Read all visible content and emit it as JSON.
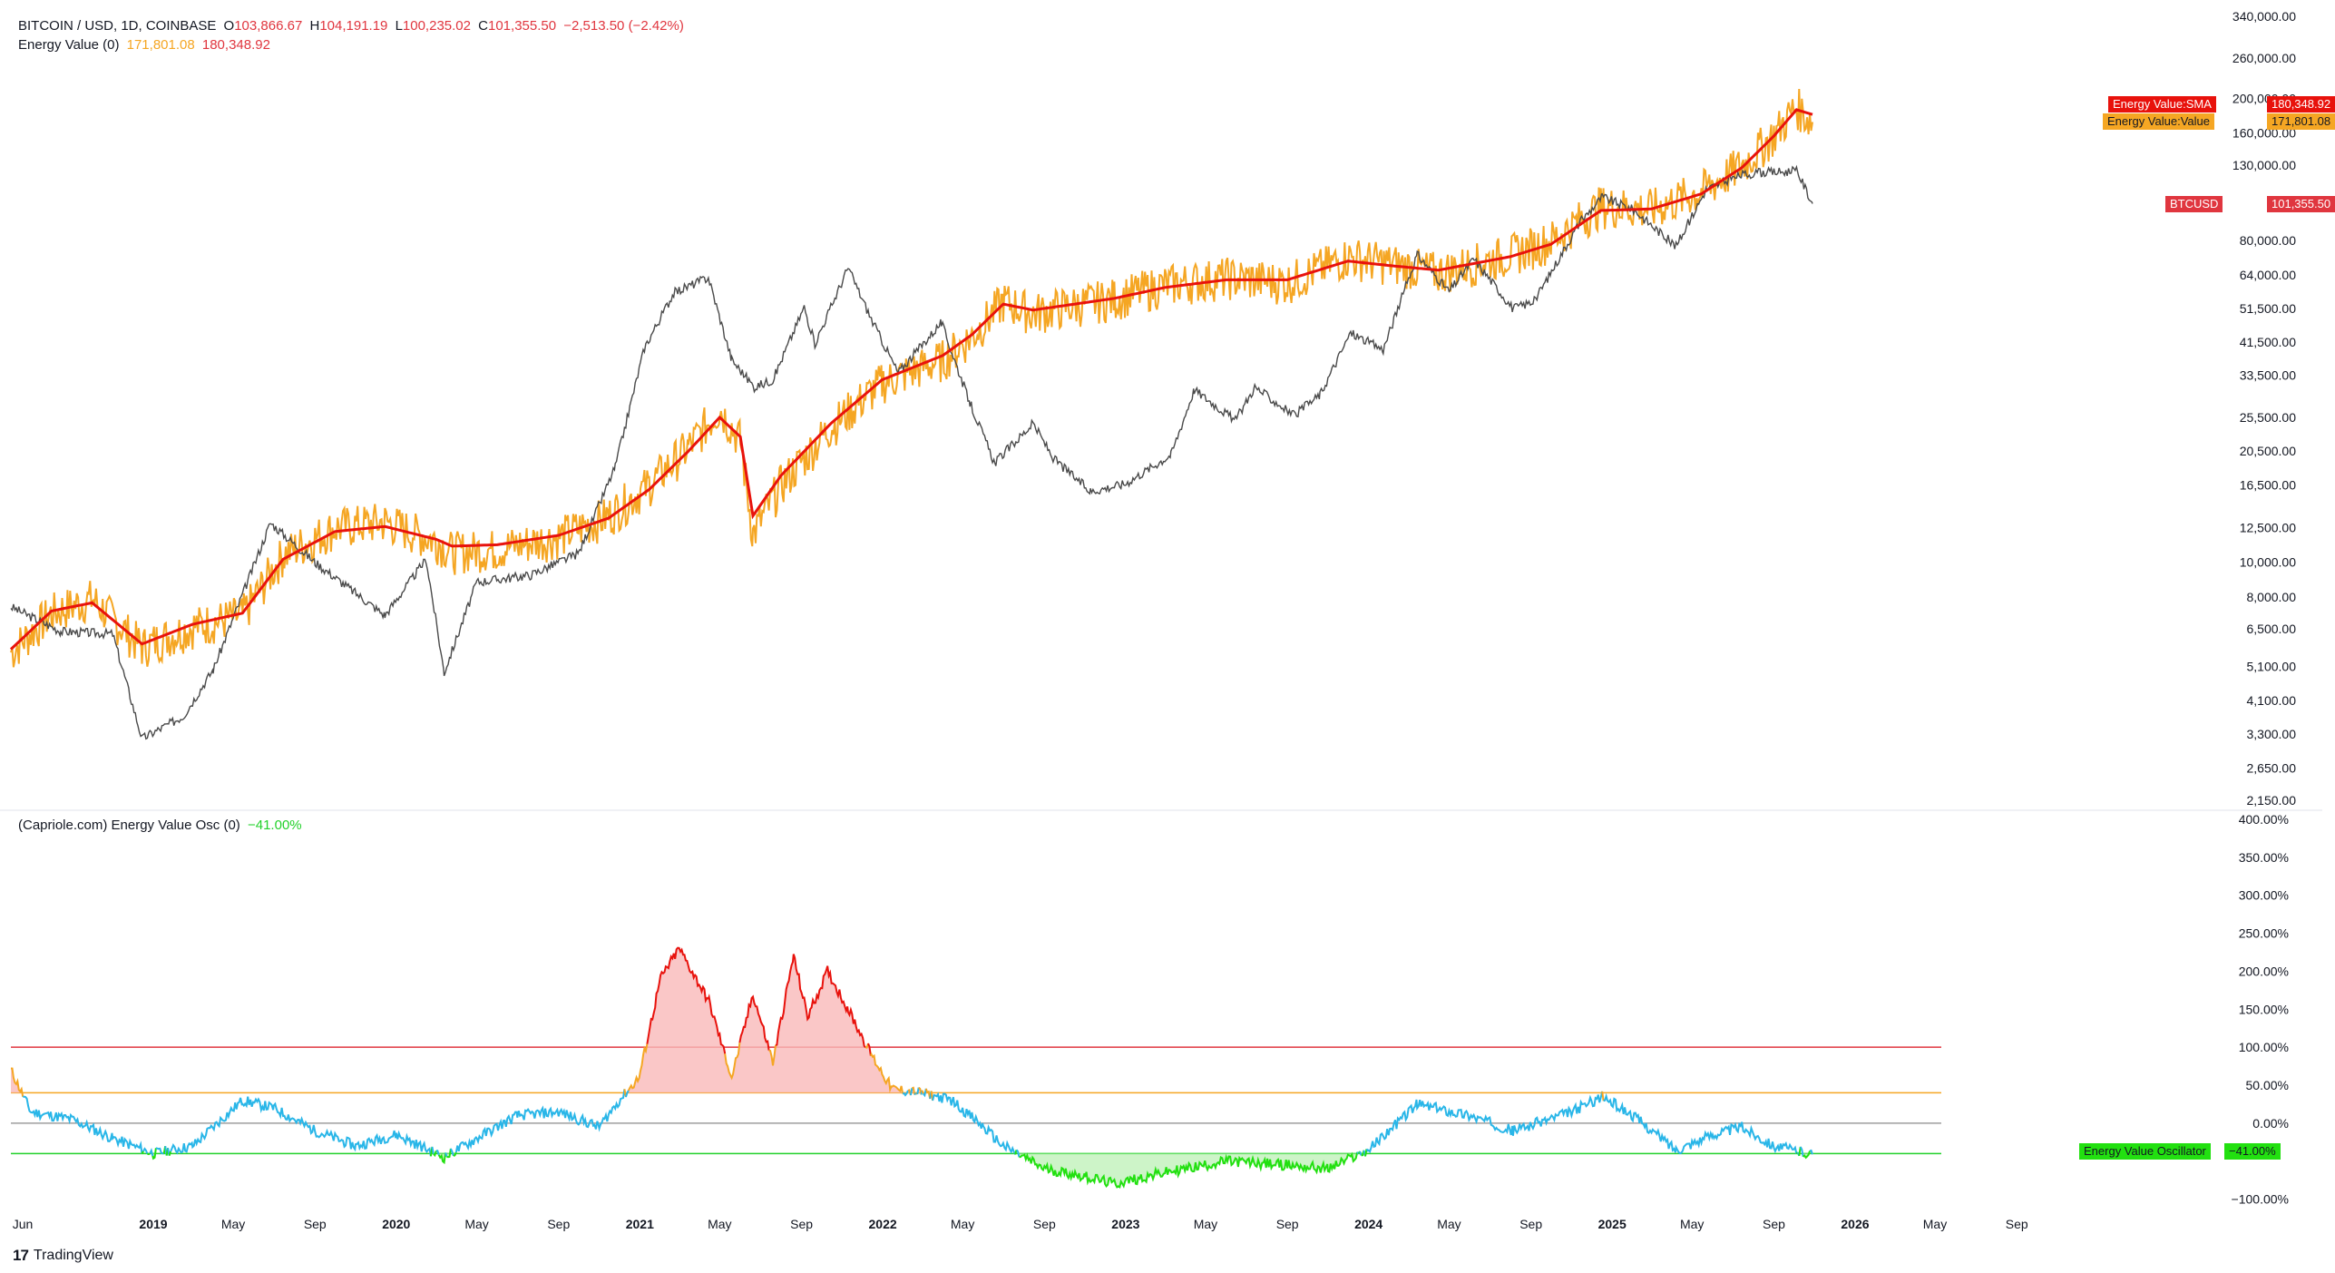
{
  "header": {
    "symbol": "BITCOIN / USD, 1D, COINBASE",
    "o_label": "O",
    "o_value": "103,866.67",
    "h_label": "H",
    "h_value": "104,191.19",
    "l_label": "L",
    "l_value": "100,235.02",
    "c_label": "C",
    "c_value": "101,355.50",
    "change": "−2,513.50 (−2.42%)",
    "indicator": "Energy Value (0)",
    "ind_value1": "171,801.08",
    "ind_value2": "180,348.92"
  },
  "osc_header": {
    "label": "(Capriole.com) Energy Value Osc (0)",
    "value": "−41.00%"
  },
  "price_tags": {
    "sma_label": "Energy Value:SMA",
    "sma_value": "180,348.92",
    "value_label": "Energy Value:Value",
    "value_value": "171,801.08",
    "btc_label": "BTCUSD",
    "btc_value": "101,355.50",
    "osc_label": "Energy Value Oscillator",
    "osc_value": "−41.00%"
  },
  "branding": {
    "name": "TradingView"
  },
  "colors": {
    "price": "#4a4a4a",
    "energy_value": "#f5a623",
    "energy_sma": "#e8120c",
    "osc_cold": "#29b6e8",
    "osc_green": "#22e010",
    "osc_orange": "#f5a623",
    "osc_red": "#e8120c",
    "line_100": "#e0363f",
    "line_40": "#f5a623",
    "line_0": "#9e9e9e",
    "line_m40": "#22d12a"
  },
  "chart_data": [
    {
      "type": "line",
      "title": "BITCOIN / USD, 1D, COINBASE",
      "y_scale": "log",
      "ylim": [
        2150,
        340000
      ],
      "y_ticks": [
        340000,
        260000,
        200000,
        160000,
        130000,
        100000,
        80000,
        64000,
        51500,
        41500,
        33500,
        25500,
        20500,
        16500,
        12500,
        10000,
        8000,
        6500,
        5100,
        4100,
        3300,
        2650,
        2150
      ],
      "y_tick_labels": [
        "340,000.00",
        "260,000.00",
        "200,000.00",
        "160,000.00",
        "130,000.00",
        "",
        "80,000.00",
        "64,000.00",
        "51,500.00",
        "41,500.00",
        "33,500.00",
        "25,500.00",
        "20,500.00",
        "16,500.00",
        "12,500.00",
        "10,000.00",
        "8,000.00",
        "6,500.00",
        "5,100.00",
        "4,100.00",
        "3,300.00",
        "2,650.00",
        "2,150.00"
      ],
      "xlim": [
        "2018-06-01",
        "2026-11-01"
      ],
      "x_tick_dates": [
        "2018-06-01",
        "2019-01-01",
        "2019-05-01",
        "2019-09-01",
        "2020-01-01",
        "2020-05-01",
        "2020-09-01",
        "2021-01-01",
        "2021-05-01",
        "2021-09-01",
        "2022-01-01",
        "2022-05-01",
        "2022-09-01",
        "2023-01-01",
        "2023-05-01",
        "2023-09-01",
        "2024-01-01",
        "2024-05-01",
        "2024-09-01",
        "2025-01-01",
        "2025-05-01",
        "2025-09-01",
        "2026-01-01",
        "2026-05-01",
        "2026-09-01"
      ],
      "x_tick_labels": [
        "Jun",
        "2019",
        "May",
        "Sep",
        "2020",
        "May",
        "Sep",
        "2021",
        "May",
        "Sep",
        "2022",
        "May",
        "Sep",
        "2023",
        "May",
        "Sep",
        "2024",
        "May",
        "Sep",
        "2025",
        "May",
        "Sep",
        "2026",
        "May",
        "Sep"
      ],
      "series": [
        {
          "name": "BTCUSD",
          "x": [
            "2018-06-01",
            "2018-08-15",
            "2018-11-01",
            "2018-12-15",
            "2019-02-15",
            "2019-04-01",
            "2019-06-26",
            "2019-09-01",
            "2019-12-15",
            "2020-02-15",
            "2020-03-13",
            "2020-05-01",
            "2020-07-20",
            "2020-10-01",
            "2020-11-25",
            "2021-01-08",
            "2021-02-21",
            "2021-04-14",
            "2021-05-19",
            "2021-06-22",
            "2021-07-20",
            "2021-09-05",
            "2021-09-21",
            "2021-11-10",
            "2021-12-15",
            "2022-01-24",
            "2022-03-30",
            "2022-05-12",
            "2022-06-18",
            "2022-08-15",
            "2022-09-15",
            "2022-11-09",
            "2022-12-31",
            "2023-03-10",
            "2023-04-14",
            "2023-06-15",
            "2023-07-14",
            "2023-09-11",
            "2023-10-20",
            "2023-12-05",
            "2024-01-23",
            "2024-03-14",
            "2024-05-01",
            "2024-06-07",
            "2024-08-05",
            "2024-09-06",
            "2024-11-12",
            "2024-12-17",
            "2025-02-02",
            "2025-04-07",
            "2025-05-22",
            "2025-07-14",
            "2025-08-14",
            "2025-10-06",
            "2025-10-29"
          ],
          "values": [
            7500,
            6400,
            6300,
            3200,
            3700,
            5000,
            12900,
            10000,
            7100,
            10200,
            4900,
            8800,
            9200,
            10600,
            18500,
            40000,
            57000,
            63000,
            37000,
            31000,
            32500,
            52000,
            41000,
            67000,
            48000,
            34000,
            47000,
            28000,
            19000,
            24500,
            19500,
            15800,
            16600,
            20000,
            30500,
            25000,
            31000,
            25800,
            29500,
            44000,
            39500,
            73000,
            57500,
            71000,
            51500,
            54000,
            89000,
            106000,
            97500,
            77000,
            111000,
            122000,
            124000,
            125000,
            101355.5
          ]
        },
        {
          "name": "Energy Value:Value",
          "x": [
            "2018-06-01",
            "2018-08-01",
            "2018-10-01",
            "2018-12-15",
            "2019-03-01",
            "2019-05-15",
            "2019-07-15",
            "2019-10-01",
            "2019-12-15",
            "2020-03-01",
            "2020-03-25",
            "2020-06-01",
            "2020-09-01",
            "2020-11-15",
            "2021-01-15",
            "2021-03-15",
            "2021-05-01",
            "2021-06-01",
            "2021-06-20",
            "2021-08-01",
            "2021-10-15",
            "2021-12-31",
            "2022-04-01",
            "2022-05-15",
            "2022-07-01",
            "2022-08-15",
            "2022-10-01",
            "2022-12-15",
            "2023-03-01",
            "2023-06-01",
            "2023-09-01",
            "2023-12-01",
            "2024-02-01",
            "2024-04-15",
            "2024-08-01",
            "2024-10-01",
            "2024-12-15",
            "2025-03-01",
            "2025-05-15",
            "2025-07-15",
            "2025-09-01",
            "2025-10-05",
            "2025-10-29"
          ],
          "values": [
            5600,
            7200,
            7900,
            5800,
            6600,
            7100,
            10500,
            12500,
            13000,
            11500,
            10700,
            10900,
            11800,
            13500,
            16500,
            21000,
            27000,
            22000,
            12000,
            16500,
            24000,
            32000,
            37000,
            43000,
            54000,
            50000,
            52000,
            55000,
            60000,
            63000,
            61000,
            72000,
            69000,
            65000,
            73000,
            80000,
            100000,
            98000,
            110000,
            130000,
            158000,
            190000,
            171801.08
          ]
        },
        {
          "name": "Energy Value:SMA",
          "x": [
            "2018-06-01",
            "2018-08-01",
            "2018-10-01",
            "2018-12-15",
            "2019-03-01",
            "2019-05-15",
            "2019-07-15",
            "2019-10-01",
            "2019-12-15",
            "2020-03-01",
            "2020-03-25",
            "2020-06-01",
            "2020-09-01",
            "2020-11-15",
            "2021-01-15",
            "2021-03-15",
            "2021-05-01",
            "2021-06-01",
            "2021-06-20",
            "2021-08-01",
            "2021-10-15",
            "2021-12-31",
            "2022-04-01",
            "2022-05-15",
            "2022-07-01",
            "2022-08-15",
            "2022-10-01",
            "2022-12-15",
            "2023-03-01",
            "2023-06-01",
            "2023-09-01",
            "2023-12-01",
            "2024-02-01",
            "2024-04-15",
            "2024-08-01",
            "2024-10-01",
            "2024-12-15",
            "2025-03-01",
            "2025-05-15",
            "2025-07-15",
            "2025-09-01",
            "2025-10-05",
            "2025-10-29"
          ],
          "values": [
            5700,
            7300,
            7700,
            5900,
            6700,
            7200,
            10200,
            12200,
            12600,
            11600,
            11100,
            11200,
            11900,
            13300,
            16000,
            20500,
            25500,
            22500,
            13500,
            17500,
            24500,
            32500,
            38000,
            43500,
            53000,
            51000,
            52500,
            55000,
            59000,
            62000,
            62000,
            70000,
            68000,
            66000,
            72000,
            78000,
            97000,
            98000,
            108000,
            128000,
            157000,
            186000,
            180348.92
          ]
        }
      ]
    },
    {
      "type": "area",
      "title": "(Capriole.com) Energy Value Osc (0)",
      "ylim": [
        -110,
        400
      ],
      "y_ticks": [
        400,
        350,
        300,
        250,
        200,
        150,
        100,
        50,
        0,
        -50,
        -100
      ],
      "y_tick_labels": [
        "400.00%",
        "350.00%",
        "300.00%",
        "250.00%",
        "200.00%",
        "150.00%",
        "100.00%",
        "50.00%",
        "0.00%",
        "",
        "−100.00%"
      ],
      "levels": [
        100,
        40,
        0,
        -40
      ],
      "series": [
        {
          "name": "Energy Value Oscillator",
          "x": [
            "2018-06-01",
            "2018-07-01",
            "2018-09-01",
            "2018-11-01",
            "2019-01-01",
            "2019-03-01",
            "2019-05-15",
            "2019-07-01",
            "2019-09-01",
            "2019-11-01",
            "2020-01-01",
            "2020-03-13",
            "2020-05-01",
            "2020-07-01",
            "2020-09-01",
            "2020-11-01",
            "2020-12-01",
            "2020-12-31",
            "2021-02-01",
            "2021-03-01",
            "2021-04-15",
            "2021-05-19",
            "2021-06-20",
            "2021-07-20",
            "2021-08-20",
            "2021-09-10",
            "2021-10-10",
            "2021-11-10",
            "2021-12-15",
            "2022-01-15",
            "2022-03-01",
            "2022-04-15",
            "2022-06-01",
            "2022-07-01",
            "2022-09-01",
            "2022-11-01",
            "2022-12-15",
            "2023-03-01",
            "2023-06-01",
            "2023-09-01",
            "2023-11-01",
            "2024-01-01",
            "2024-03-14",
            "2024-06-01",
            "2024-08-05",
            "2024-11-01",
            "2024-12-17",
            "2025-02-01",
            "2025-04-07",
            "2025-06-01",
            "2025-07-15",
            "2025-09-01",
            "2025-10-29"
          ],
          "values": [
            70,
            15,
            5,
            -20,
            -40,
            -30,
            30,
            20,
            -10,
            -30,
            -15,
            -45,
            -20,
            10,
            15,
            -5,
            30,
            60,
            190,
            230,
            160,
            60,
            170,
            80,
            220,
            140,
            200,
            150,
            90,
            45,
            40,
            30,
            -5,
            -30,
            -60,
            -70,
            -80,
            -65,
            -50,
            -55,
            -60,
            -35,
            25,
            10,
            -10,
            15,
            35,
            10,
            -35,
            -15,
            -5,
            -30,
            -41
          ]
        }
      ]
    }
  ]
}
